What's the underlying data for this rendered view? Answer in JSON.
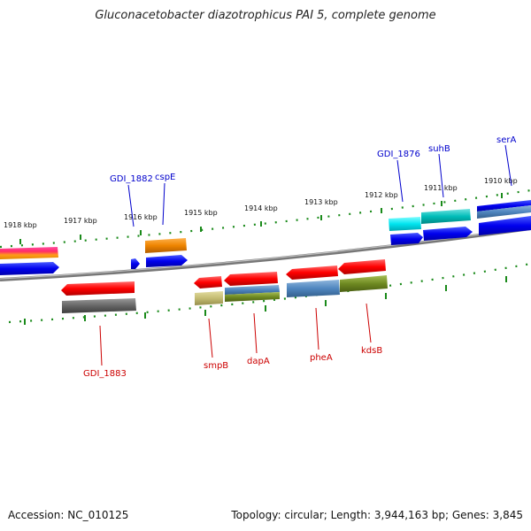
{
  "title": "Gluconacetobacter diazotrophicus PAI 5, complete genome",
  "footer": {
    "accession": "Accession: NC_010125",
    "topology": "Topology: circular; Length: 3,944,163 bp; Genes: 3,845"
  },
  "ruler_labels": {
    "upper": [
      "1918 kbp",
      "1917 kbp",
      "1916 kbp",
      "1915 kbp",
      "1914 kbp",
      "1913 kbp",
      "1912 kbp",
      "1911 kbp",
      "1910 kbp"
    ]
  },
  "genes_top": [
    "GDI_1882",
    "cspE",
    "GDI_1876",
    "suhB",
    "serA"
  ],
  "genes_bottom": [
    "GDI_1883",
    "smpB",
    "dapA",
    "pheA",
    "kdsB"
  ],
  "colors": {
    "forward_label": "#0000cc",
    "reverse_label": "#cc0000",
    "tick": "#1a8a1a",
    "backbone": "#888888"
  }
}
